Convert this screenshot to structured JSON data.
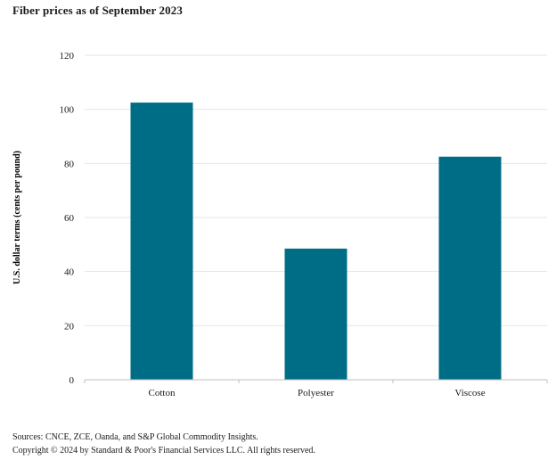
{
  "title": "Fiber prices as of September 2023",
  "footer": {
    "sources": "Sources: CNCE, ZCE, Oanda, and S&P Global Commodity Insights.",
    "copyright": "Copyright © 2024 by Standard & Poor's Financial Services LLC. All rights reserved."
  },
  "chart_data": {
    "type": "bar",
    "categories": [
      "Cotton",
      "Polyester",
      "Viscose"
    ],
    "values": [
      102.5,
      48.5,
      82.5
    ],
    "title": "Fiber prices as of September 2023",
    "xlabel": "",
    "ylabel": "U.S. dollar terms (cents per pound)",
    "ylim": [
      0,
      120
    ],
    "yticks": [
      0,
      20,
      40,
      60,
      80,
      100,
      120
    ],
    "grid": true,
    "bar_color": "#006d87",
    "grid_color": "#e6e6e6",
    "axis_color": "#bfbfbf"
  }
}
